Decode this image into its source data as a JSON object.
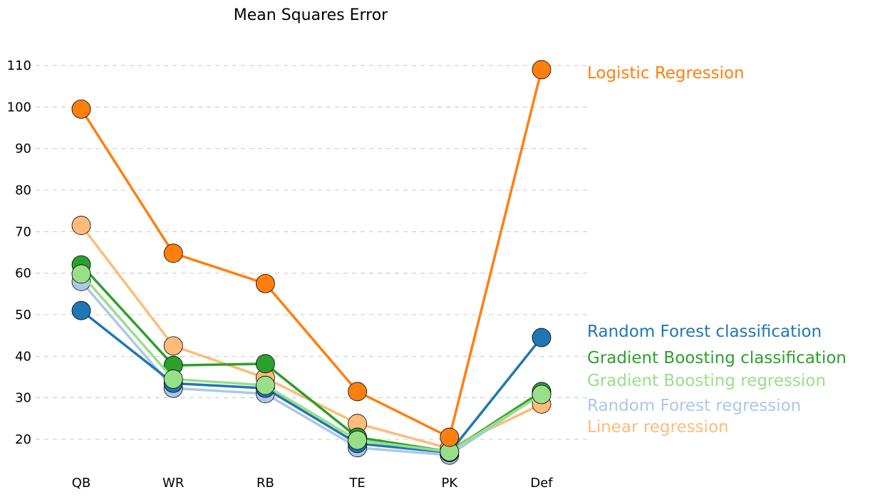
{
  "chart_data": {
    "type": "line",
    "title": "Mean Squares Error",
    "xlabel": "",
    "ylabel": "",
    "categories": [
      "QB",
      "WR",
      "RB",
      "TE",
      "PK",
      "Def"
    ],
    "ylim": [
      12,
      117
    ],
    "yticks": [
      20,
      30,
      40,
      50,
      60,
      70,
      80,
      90,
      100,
      110
    ],
    "grid": true,
    "legend": "right-side labels",
    "series": [
      {
        "name": "Linear regression",
        "color": "#ffbb78",
        "values": [
          71.5,
          42.5,
          34.8,
          23.8,
          17.8,
          28.5
        ]
      },
      {
        "name": "Random Forest regression",
        "color": "#aec7e8",
        "values": [
          58.0,
          32.3,
          31.0,
          18.0,
          16.2,
          31.0
        ]
      },
      {
        "name": "Random Forest classification",
        "color": "#1f77b4",
        "values": [
          51.0,
          33.5,
          32.3,
          19.0,
          16.8,
          44.5
        ]
      },
      {
        "name": "Gradient Boosting classification",
        "color": "#2ca02c",
        "values": [
          62.0,
          37.8,
          38.2,
          20.5,
          17.0,
          31.5
        ]
      },
      {
        "name": "Gradient Boosting regression",
        "color": "#98df8a",
        "values": [
          59.8,
          34.5,
          33.0,
          19.8,
          17.0,
          30.8
        ]
      },
      {
        "name": "Logistic Regression",
        "color": "#ff7f0e",
        "values": [
          99.5,
          64.8,
          57.5,
          31.5,
          20.5,
          109.0
        ]
      }
    ],
    "labels": [
      {
        "series": "Logistic Regression",
        "text": "Logistic Regression",
        "color": "#ff7f0e"
      },
      {
        "series": "Random Forest classification",
        "text": "Random Forest classification",
        "color": "#1f77b4"
      },
      {
        "series": "Gradient Boosting classification",
        "text": "Gradient Boosting classification",
        "color": "#2ca02c"
      },
      {
        "series": "Gradient Boosting regression",
        "text": "Gradient Boosting regression",
        "color": "#98df8a"
      },
      {
        "series": "Random Forest regression",
        "text": "Random Forest regression",
        "color": "#aec7e8"
      },
      {
        "series": "Linear regression",
        "text": "Linear regression",
        "color": "#ffbb78"
      }
    ]
  }
}
